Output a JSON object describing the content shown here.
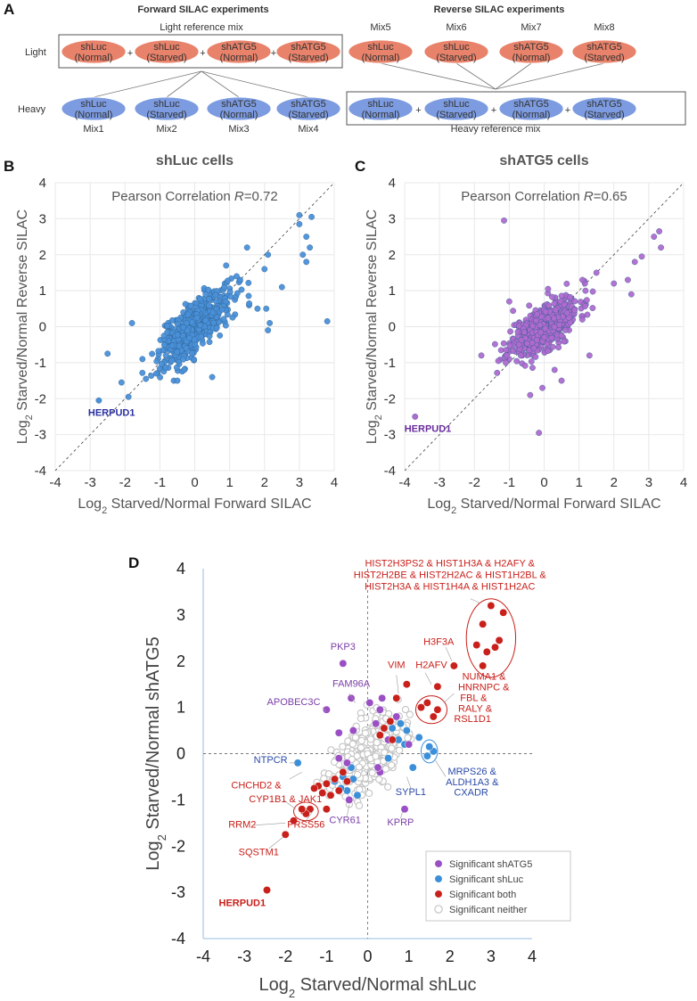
{
  "panel_a": {
    "letter": "A",
    "forward_title": "Forward SILAC experiments",
    "reverse_title": "Reverse SILAC experiments",
    "light_reference": "Light reference mix",
    "heavy_reference": "Heavy reference mix",
    "light_label": "Light",
    "heavy_label": "Heavy",
    "plus": "+",
    "light_forward_samples": [
      {
        "line1": "shLuc",
        "line2": "(Normal)"
      },
      {
        "line1": "shLuc",
        "line2": "(Starved)"
      },
      {
        "line1": "shATG5",
        "line2": "(Normal)"
      },
      {
        "line1": "shATG5",
        "line2": "(Starved)"
      }
    ],
    "light_reverse_samples": [
      {
        "mix": "Mix5",
        "line1": "shLuc",
        "line2": "(Normal)"
      },
      {
        "mix": "Mix6",
        "line1": "shLuc",
        "line2": "(Starved)"
      },
      {
        "mix": "Mix7",
        "line1": "shATG5",
        "line2": "(Normal)"
      },
      {
        "mix": "Mix8",
        "line1": "shATG5",
        "line2": "(Starved)"
      }
    ],
    "heavy_forward_samples": [
      {
        "mix": "Mix1",
        "line1": "shLuc",
        "line2": "(Normal)"
      },
      {
        "mix": "Mix2",
        "line1": "shLuc",
        "line2": "(Starved)"
      },
      {
        "mix": "Mix3",
        "line1": "shATG5",
        "line2": "(Normal)"
      },
      {
        "mix": "Mix4",
        "line1": "shATG5",
        "line2": "(Starved)"
      }
    ],
    "heavy_reverse_samples": [
      {
        "line1": "shLuc",
        "line2": "(Normal)"
      },
      {
        "line1": "shLuc",
        "line2": "(Starved)"
      },
      {
        "line1": "shATG5",
        "line2": "(Normal)"
      },
      {
        "line1": "shATG5",
        "line2": "(Starved)"
      }
    ],
    "colors": {
      "light": "#e8826a",
      "heavy": "#7c9be0"
    }
  },
  "chart_data": [
    {
      "panel": "B",
      "type": "scatter",
      "title": "shLuc cells",
      "annotation_prefix": "Pearson Correlation ",
      "annotation_symbol": "R",
      "annotation_value": "=0.72",
      "xlabel_prefix": "Log",
      "xlabel_sub": "2",
      "xlabel_suffix": " Starved/Normal Forward SILAC",
      "ylabel_prefix": "Log",
      "ylabel_sub": "2",
      "ylabel_suffix": " Starved/Normal Reverse SILAC",
      "xlim": [
        -4,
        4
      ],
      "ylim": [
        -4,
        4
      ],
      "ticks": [
        "-4",
        "-3",
        "-2",
        "-1",
        "0",
        "1",
        "2",
        "3",
        "4"
      ],
      "grid": true,
      "color": "#4a90d9",
      "labeled_point": {
        "label": "HERPUD1",
        "x": -2.75,
        "y": -2.05,
        "color": "#2a2fa0"
      },
      "points": [
        [
          3.0,
          3.1
        ],
        [
          3.35,
          3.05
        ],
        [
          3.0,
          2.85
        ],
        [
          3.2,
          2.5
        ],
        [
          3.3,
          2.2
        ],
        [
          3.1,
          2.0
        ],
        [
          3.2,
          1.8
        ],
        [
          2.1,
          2.0
        ],
        [
          1.5,
          2.2
        ],
        [
          2.0,
          1.6
        ],
        [
          1.3,
          1.3
        ],
        [
          2.5,
          1.1
        ],
        [
          2.05,
          0.5
        ],
        [
          2.15,
          0.1
        ],
        [
          3.8,
          0.15
        ],
        [
          2.1,
          -0.1
        ],
        [
          -1.9,
          -1.95
        ],
        [
          -2.1,
          -1.55
        ],
        [
          -1.4,
          -1.45
        ],
        [
          -2.5,
          -0.75
        ],
        [
          -1.1,
          -1.3
        ],
        [
          1.2,
          1.4
        ],
        [
          0.9,
          1.7
        ],
        [
          -0.6,
          -1.5
        ],
        [
          0.5,
          -1.4
        ],
        [
          -0.3,
          -1.2
        ],
        [
          1.8,
          0.5
        ],
        [
          -0.5,
          -1.5
        ],
        [
          -1.5,
          -0.9
        ],
        [
          -1.8,
          0.1
        ]
      ],
      "cluster": {
        "cx": 0.0,
        "cy": 0.0,
        "sx": 0.5,
        "sy": 0.5,
        "rho": 0.72,
        "n": 520,
        "seed": 7
      }
    },
    {
      "panel": "C",
      "type": "scatter",
      "title": "shATG5 cells",
      "annotation_prefix": "Pearson Correlation ",
      "annotation_symbol": "R",
      "annotation_value": "=0.65",
      "xlabel_prefix": "Log",
      "xlabel_sub": "2",
      "xlabel_suffix": " Starved/Normal Forward SILAC",
      "ylabel_prefix": "Log",
      "ylabel_sub": "2",
      "ylabel_suffix": " Starved/Normal Reverse SILAC",
      "xlim": [
        -4,
        4
      ],
      "ylim": [
        -4,
        4
      ],
      "ticks": [
        "-4",
        "-3",
        "-2",
        "-1",
        "0",
        "1",
        "2",
        "3",
        "4"
      ],
      "grid": true,
      "color": "#b06ad0",
      "labeled_point": {
        "label": "HERPUD1",
        "x": -3.7,
        "y": -2.5,
        "color": "#6a2ca0"
      },
      "points": [
        [
          -1.15,
          2.95
        ],
        [
          3.3,
          2.65
        ],
        [
          3.15,
          2.5
        ],
        [
          3.35,
          2.2
        ],
        [
          2.8,
          1.95
        ],
        [
          2.6,
          1.8
        ],
        [
          2.4,
          1.3
        ],
        [
          2.5,
          0.9
        ],
        [
          2.0,
          1.2
        ],
        [
          1.5,
          1.5
        ],
        [
          -0.15,
          -2.95
        ],
        [
          -0.4,
          -1.9
        ],
        [
          -0.05,
          -1.7
        ],
        [
          0.3,
          -1.2
        ],
        [
          -1.1,
          -1.0
        ],
        [
          1.3,
          -0.8
        ],
        [
          -1.0,
          0.7
        ],
        [
          -1.8,
          -0.8
        ],
        [
          0.5,
          -1.5
        ],
        [
          1.1,
          1.3
        ]
      ],
      "cluster": {
        "cx": 0.0,
        "cy": 0.0,
        "sx": 0.5,
        "sy": 0.42,
        "rho": 0.65,
        "n": 520,
        "seed": 11
      }
    },
    {
      "panel": "D",
      "type": "scatter",
      "xlabel_prefix": "Log",
      "xlabel_sub": "2",
      "xlabel_suffix": " Starved/Normal shLuc",
      "ylabel_prefix": "Log",
      "ylabel_sub": "2",
      "ylabel_suffix": " Starved/Normal shATG5",
      "xlim": [
        -4,
        4
      ],
      "ylim": [
        -4,
        4
      ],
      "ticks": [
        "-4",
        "-3",
        "-2",
        "-1",
        "0",
        "1",
        "2",
        "3",
        "4"
      ],
      "colors": {
        "shATG5": "#9a4fc4",
        "shLuc": "#3a8fd8",
        "both": "#c8201a",
        "neither": "#c4c4c4"
      },
      "legend": [
        {
          "key": "shATG5",
          "label": "Significant shATG5"
        },
        {
          "key": "shLuc",
          "label": "Significant shLuc"
        },
        {
          "key": "both",
          "label": "Significant both"
        },
        {
          "key": "neither",
          "label": "Significant neither"
        }
      ],
      "points_both": [
        [
          3.0,
          3.2
        ],
        [
          3.3,
          3.05
        ],
        [
          2.8,
          2.8
        ],
        [
          3.2,
          2.45
        ],
        [
          2.9,
          2.2
        ],
        [
          3.1,
          2.3
        ],
        [
          2.65,
          2.35
        ],
        [
          2.8,
          1.9
        ],
        [
          2.1,
          1.9
        ],
        [
          1.7,
          1.45
        ],
        [
          0.95,
          1.5
        ],
        [
          0.7,
          1.2
        ],
        [
          1.7,
          0.95
        ],
        [
          1.6,
          0.8
        ],
        [
          1.3,
          1.0
        ],
        [
          1.45,
          1.1
        ],
        [
          -2.45,
          -2.95
        ],
        [
          -2.0,
          -1.75
        ],
        [
          -1.8,
          -1.45
        ],
        [
          -1.55,
          -1.25
        ],
        [
          -1.4,
          -1.2
        ],
        [
          -1.5,
          -1.3
        ],
        [
          -1.6,
          -1.2
        ],
        [
          -1.0,
          -1.2
        ],
        [
          -1.1,
          -0.85
        ],
        [
          -1.2,
          -0.7
        ],
        [
          -1.0,
          -0.65
        ],
        [
          -1.3,
          -0.75
        ],
        [
          -0.7,
          -0.8
        ],
        [
          -0.5,
          -0.6
        ],
        [
          -0.8,
          -0.55
        ],
        [
          0.4,
          0.55
        ],
        [
          0.55,
          0.7
        ],
        [
          0.3,
          0.4
        ],
        [
          0.6,
          0.3
        ],
        [
          -0.6,
          -0.4
        ],
        [
          -0.9,
          -0.9
        ]
      ],
      "points_shATG5": [
        [
          -0.6,
          1.95
        ],
        [
          -0.4,
          1.2
        ],
        [
          -1.0,
          0.95
        ],
        [
          0.3,
          0.95
        ],
        [
          0.9,
          -1.2
        ],
        [
          -0.45,
          -1.0
        ],
        [
          0.3,
          -0.4
        ],
        [
          1.0,
          0.2
        ],
        [
          -0.5,
          -0.2
        ],
        [
          0.5,
          0.3
        ],
        [
          0.25,
          -0.3
        ],
        [
          -0.7,
          -0.1
        ],
        [
          -0.35,
          0.5
        ],
        [
          0.7,
          0.8
        ],
        [
          0.2,
          0.65
        ],
        [
          -0.7,
          0.45
        ],
        [
          0.05,
          1.1
        ],
        [
          0.35,
          1.2
        ]
      ],
      "points_shLuc": [
        [
          -1.7,
          -0.2
        ],
        [
          1.6,
          0.05
        ],
        [
          1.45,
          -0.05
        ],
        [
          1.5,
          0.15
        ],
        [
          1.1,
          -0.3
        ],
        [
          0.95,
          0.5
        ],
        [
          0.6,
          0.55
        ],
        [
          0.75,
          0.3
        ],
        [
          -0.5,
          -0.8
        ],
        [
          -0.6,
          -0.5
        ],
        [
          -0.4,
          -0.3
        ],
        [
          -0.8,
          -0.6
        ],
        [
          0.9,
          0.2
        ],
        [
          0.5,
          -0.1
        ],
        [
          -0.25,
          -0.9
        ],
        [
          -0.65,
          -0.75
        ],
        [
          1.25,
          0.35
        ],
        [
          0.8,
          0.65
        ],
        [
          -0.35,
          -0.55
        ]
      ],
      "cluster": {
        "cx": 0.0,
        "cy": 0.0,
        "sx": 0.42,
        "sy": 0.4,
        "rho": 0.5,
        "n": 420,
        "seed": 23
      },
      "ellipses": [
        {
          "cx": 3.0,
          "cy": 2.5,
          "rx": 0.6,
          "ry": 0.85,
          "color": "#c8201a"
        },
        {
          "cx": 1.55,
          "cy": 0.95,
          "rx": 0.38,
          "ry": 0.3,
          "color": "#c8201a"
        },
        {
          "cx": -1.5,
          "cy": -1.25,
          "rx": 0.3,
          "ry": 0.2,
          "color": "#c8201a"
        },
        {
          "cx": 1.5,
          "cy": 0.05,
          "rx": 0.2,
          "ry": 0.25,
          "color": "#3a8fd8"
        }
      ],
      "labels": [
        {
          "text": "HIST2H3PS2 & HIST1H3A & H2AFY &",
          "x": 2.0,
          "y": 4.05,
          "anchor": "middle",
          "color": "#c8201a"
        },
        {
          "text": "HIST2H2BE & HIST2H2AC & HIST1H2BL &",
          "x": 2.0,
          "y": 3.8,
          "anchor": "middle",
          "color": "#c8201a"
        },
        {
          "text": "HIST2H3A & HIST1H4A & HIST1H2AC",
          "x": 2.0,
          "y": 3.55,
          "anchor": "middle",
          "color": "#c8201a"
        },
        {
          "text": "H3F3A",
          "x": 2.1,
          "y": 2.35,
          "anchor": "end",
          "color": "#c8201a"
        },
        {
          "text": "H2AFV",
          "x": 1.55,
          "y": 1.85,
          "anchor": "middle",
          "color": "#c8201a"
        },
        {
          "text": "VIM",
          "x": 0.7,
          "y": 1.85,
          "anchor": "middle",
          "color": "#c8201a"
        },
        {
          "text": "NUMA1 &",
          "x": 2.3,
          "y": 1.6,
          "anchor": "start",
          "color": "#c8201a"
        },
        {
          "text": "HNRNPC &",
          "x": 2.2,
          "y": 1.37,
          "anchor": "start",
          "color": "#c8201a"
        },
        {
          "text": "FBL &",
          "x": 2.25,
          "y": 1.14,
          "anchor": "start",
          "color": "#c8201a"
        },
        {
          "text": "RALY &",
          "x": 2.2,
          "y": 0.91,
          "anchor": "start",
          "color": "#c8201a"
        },
        {
          "text": "RSL1D1",
          "x": 2.1,
          "y": 0.68,
          "anchor": "start",
          "color": "#c8201a"
        },
        {
          "text": "PKP3",
          "x": -0.6,
          "y": 2.25,
          "anchor": "middle",
          "color": "#7b3fa8"
        },
        {
          "text": "FAM96A",
          "x": -0.4,
          "y": 1.45,
          "anchor": "middle",
          "color": "#7b3fa8"
        },
        {
          "text": "APOBEC3C",
          "x": -1.15,
          "y": 1.05,
          "anchor": "end",
          "color": "#7b3fa8"
        },
        {
          "text": "NTPCR",
          "x": -1.95,
          "y": -0.2,
          "anchor": "end",
          "color": "#2a4aa8"
        },
        {
          "text": "MRPS26 &",
          "x": 1.95,
          "y": -0.45,
          "anchor": "start",
          "color": "#2a4aa8"
        },
        {
          "text": "ALDH1A3 &",
          "x": 1.9,
          "y": -0.68,
          "anchor": "start",
          "color": "#2a4aa8"
        },
        {
          "text": "CXADR",
          "x": 2.1,
          "y": -0.91,
          "anchor": "start",
          "color": "#2a4aa8"
        },
        {
          "text": "SYPL1",
          "x": 1.05,
          "y": -0.9,
          "anchor": "middle",
          "color": "#2a4aa8"
        },
        {
          "text": "KPRP",
          "x": 0.8,
          "y": -1.55,
          "anchor": "middle",
          "color": "#7b3fa8"
        },
        {
          "text": "CYR61",
          "x": -0.55,
          "y": -1.5,
          "anchor": "middle",
          "color": "#7b3fa8"
        },
        {
          "text": "CHCHD2 &",
          "x": -2.1,
          "y": -0.75,
          "anchor": "end",
          "color": "#c8201a"
        },
        {
          "text": "CYP1B1 & JAK1",
          "x": -2.0,
          "y": -1.05,
          "anchor": "middle",
          "color": "#c8201a"
        },
        {
          "text": "RRM2",
          "x": -3.05,
          "y": -1.6,
          "anchor": "middle",
          "color": "#c8201a"
        },
        {
          "text": "PRSS56",
          "x": -1.5,
          "y": -1.6,
          "anchor": "middle",
          "color": "#c8201a"
        },
        {
          "text": "SQSTM1",
          "x": -2.65,
          "y": -2.2,
          "anchor": "middle",
          "color": "#c8201a"
        },
        {
          "text": "HERPUD1",
          "x": -3.05,
          "y": -3.3,
          "anchor": "middle",
          "color": "#c8201a",
          "bold": true
        }
      ]
    }
  ]
}
